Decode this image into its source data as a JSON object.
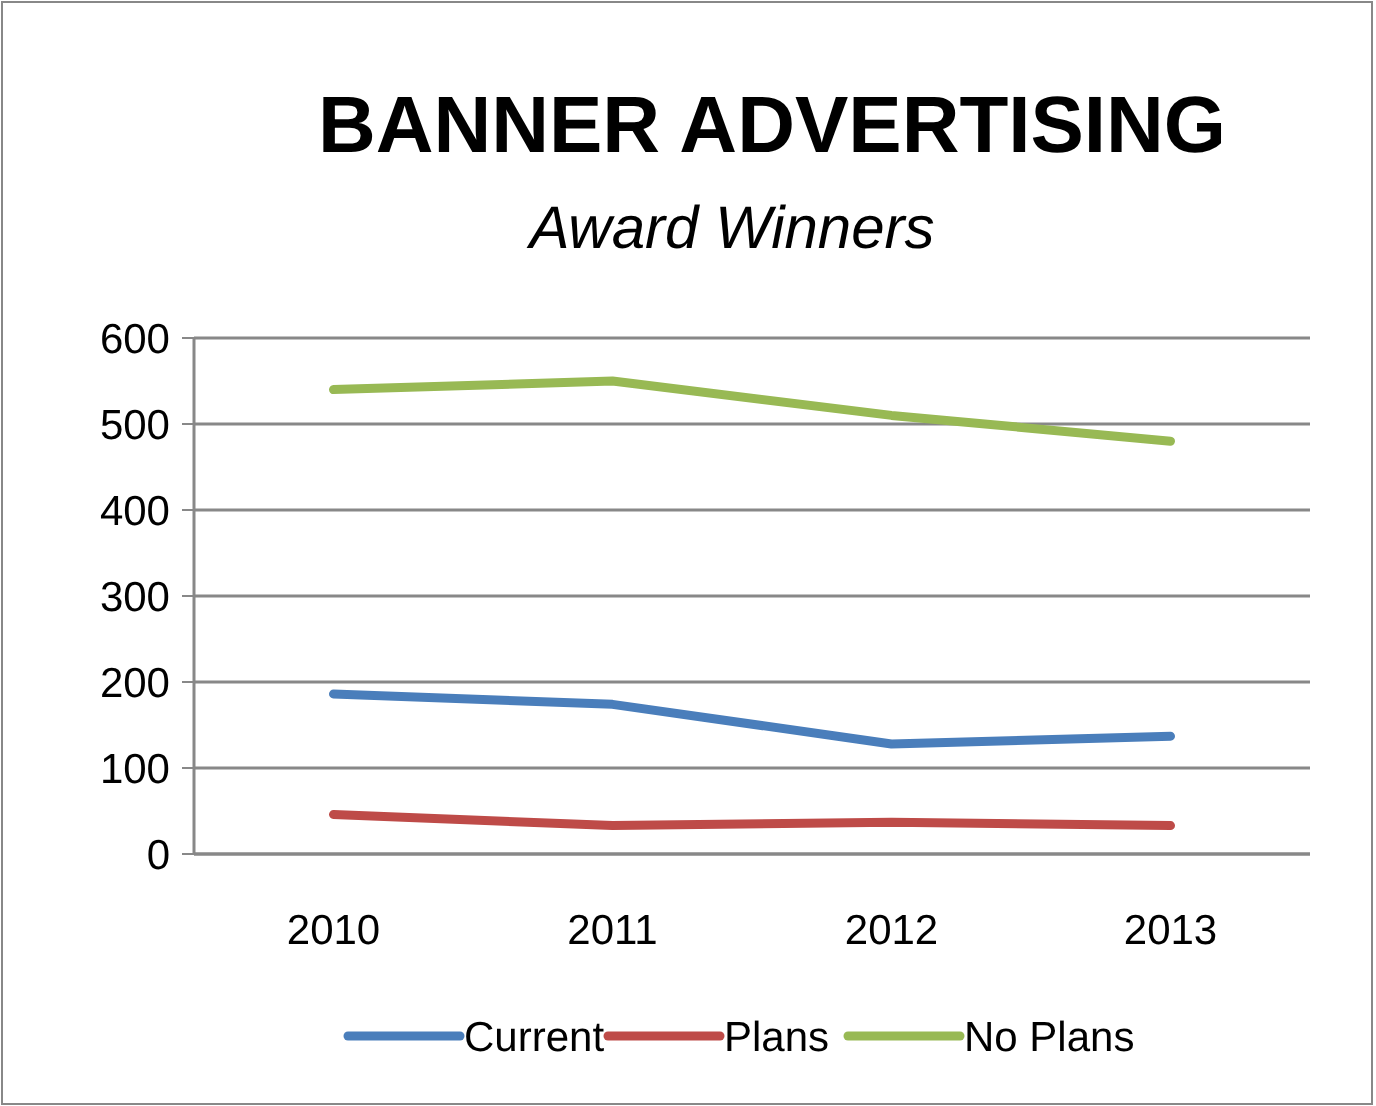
{
  "chart_data": {
    "type": "line",
    "title": "BANNER ADVERTISING",
    "subtitle": "Award Winners",
    "categories": [
      "2010",
      "2011",
      "2012",
      "2013"
    ],
    "series": [
      {
        "name": "Current",
        "color": "#4a7ebb",
        "values": [
          186,
          174,
          128,
          137
        ]
      },
      {
        "name": "Plans",
        "color": "#be4b48",
        "values": [
          46,
          33,
          37,
          33
        ]
      },
      {
        "name": "No Plans",
        "color": "#98b954",
        "values": [
          540,
          550,
          510,
          480
        ]
      }
    ],
    "ylim": [
      0,
      600
    ],
    "yticks": [
      0,
      100,
      200,
      300,
      400,
      500,
      600
    ],
    "grid": "y",
    "legend": "bottom",
    "marker": "none",
    "line_style": "solid"
  }
}
